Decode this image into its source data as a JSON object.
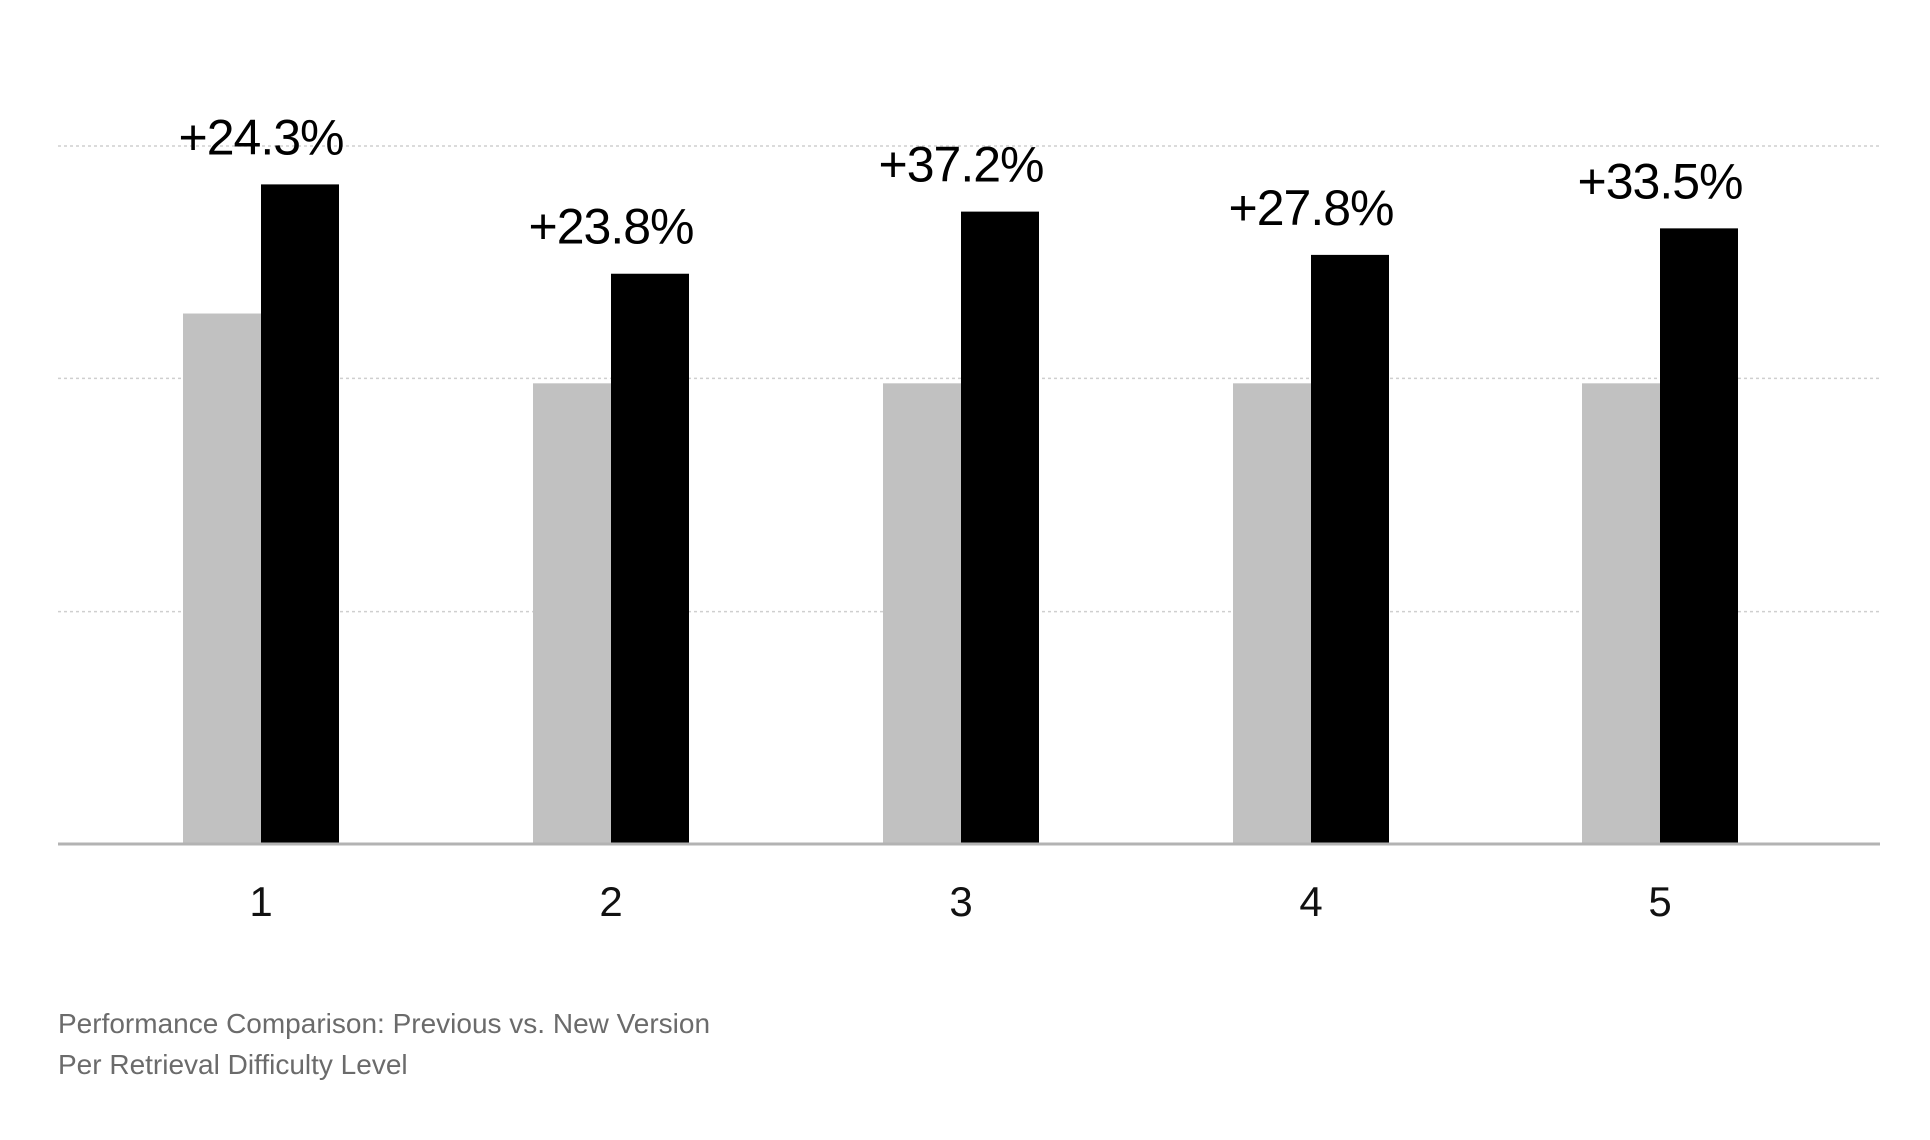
{
  "chart_data": {
    "type": "bar",
    "categories": [
      "1",
      "2",
      "3",
      "4",
      "5"
    ],
    "series": [
      {
        "values": [
          76,
          66,
          66,
          66,
          66
        ]
      },
      {
        "values": [
          94.5,
          81.7,
          90.6,
          84.4,
          88.2
        ]
      }
    ],
    "data_labels": [
      "+24.3%",
      "+23.8%",
      "+37.2%",
      "+27.8%",
      "+33.5%"
    ],
    "ylim": [
      0,
      100
    ],
    "gridlines": [
      33.3,
      66.7,
      100
    ],
    "grid": true,
    "legend": "none",
    "colors": {
      "previous": "#c1c1c1",
      "new": "#000000",
      "grid": "#cfcfcf",
      "axis": "#b3b3b3",
      "caption": "#6b6b6b"
    }
  },
  "caption": {
    "line1": "Performance Comparison: Previous vs. New Version",
    "line2": "Per Retrieval Difficulty Level"
  }
}
